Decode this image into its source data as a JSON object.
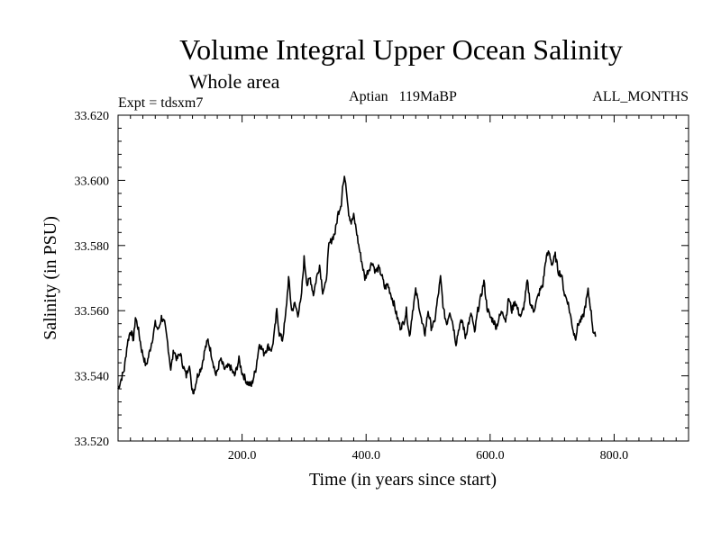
{
  "chart_data": {
    "type": "line",
    "title": "Volume Integral Upper Ocean Salinity",
    "subtitle": "Whole area",
    "left_label": "Expt = tdsxm7",
    "center_label": "Aptian   119MaBP",
    "right_label": "ALL_MONTHS",
    "xlabel": "Time (in years since start)",
    "ylabel": "Salinity (in PSU)",
    "xlim": [
      0,
      920
    ],
    "ylim": [
      33.52,
      33.62
    ],
    "x_ticks": [
      200,
      400,
      600,
      800
    ],
    "x_tick_labels": [
      "200.0",
      "400.0",
      "600.0",
      "800.0"
    ],
    "y_ticks": [
      33.52,
      33.54,
      33.56,
      33.58,
      33.6,
      33.62
    ],
    "y_tick_labels": [
      "33.520",
      "33.540",
      "33.560",
      "33.580",
      "33.600",
      "33.620"
    ],
    "series": [
      {
        "name": "Salinity",
        "keypoints": [
          [
            0,
            33.536
          ],
          [
            10,
            33.542
          ],
          [
            15,
            33.55
          ],
          [
            20,
            33.554
          ],
          [
            25,
            33.551
          ],
          [
            28,
            33.558
          ],
          [
            32,
            33.555
          ],
          [
            38,
            33.548
          ],
          [
            45,
            33.543
          ],
          [
            48,
            33.545
          ],
          [
            55,
            33.551
          ],
          [
            60,
            33.556
          ],
          [
            65,
            33.554
          ],
          [
            70,
            33.558
          ],
          [
            75,
            33.556
          ],
          [
            80,
            33.55
          ],
          [
            85,
            33.542
          ],
          [
            90,
            33.548
          ],
          [
            95,
            33.545
          ],
          [
            100,
            33.547
          ],
          [
            105,
            33.543
          ],
          [
            110,
            33.54
          ],
          [
            115,
            33.544
          ],
          [
            118,
            33.537
          ],
          [
            122,
            33.535
          ],
          [
            128,
            33.54
          ],
          [
            135,
            33.543
          ],
          [
            140,
            33.548
          ],
          [
            145,
            33.551
          ],
          [
            150,
            33.547
          ],
          [
            158,
            33.54
          ],
          [
            165,
            33.545
          ],
          [
            172,
            33.542
          ],
          [
            180,
            33.543
          ],
          [
            188,
            33.54
          ],
          [
            195,
            33.545
          ],
          [
            200,
            33.541
          ],
          [
            208,
            33.538
          ],
          [
            215,
            33.537
          ],
          [
            222,
            33.542
          ],
          [
            228,
            33.55
          ],
          [
            235,
            33.547
          ],
          [
            242,
            33.549
          ],
          [
            248,
            33.548
          ],
          [
            252,
            33.553
          ],
          [
            256,
            33.56
          ],
          [
            260,
            33.553
          ],
          [
            265,
            33.551
          ],
          [
            270,
            33.558
          ],
          [
            275,
            33.57
          ],
          [
            280,
            33.56
          ],
          [
            285,
            33.562
          ],
          [
            290,
            33.559
          ],
          [
            295,
            33.563
          ],
          [
            300,
            33.576
          ],
          [
            305,
            33.568
          ],
          [
            310,
            33.57
          ],
          [
            315,
            33.565
          ],
          [
            320,
            33.57
          ],
          [
            325,
            33.574
          ],
          [
            330,
            33.566
          ],
          [
            335,
            33.568
          ],
          [
            340,
            33.58
          ],
          [
            345,
            33.582
          ],
          [
            350,
            33.584
          ],
          [
            355,
            33.59
          ],
          [
            360,
            33.593
          ],
          [
            362,
            33.598
          ],
          [
            366,
            33.601
          ],
          [
            368,
            33.598
          ],
          [
            372,
            33.59
          ],
          [
            376,
            33.587
          ],
          [
            380,
            33.589
          ],
          [
            384,
            33.585
          ],
          [
            388,
            33.58
          ],
          [
            392,
            33.576
          ],
          [
            398,
            33.57
          ],
          [
            405,
            33.573
          ],
          [
            410,
            33.575
          ],
          [
            415,
            33.572
          ],
          [
            420,
            33.573
          ],
          [
            425,
            33.571
          ],
          [
            430,
            33.567
          ],
          [
            435,
            33.568
          ],
          [
            440,
            33.565
          ],
          [
            445,
            33.562
          ],
          [
            450,
            33.558
          ],
          [
            455,
            33.555
          ],
          [
            460,
            33.556
          ],
          [
            465,
            33.56
          ],
          [
            470,
            33.552
          ],
          [
            475,
            33.56
          ],
          [
            480,
            33.566
          ],
          [
            485,
            33.562
          ],
          [
            490,
            33.556
          ],
          [
            495,
            33.553
          ],
          [
            500,
            33.56
          ],
          [
            505,
            33.555
          ],
          [
            510,
            33.556
          ],
          [
            515,
            33.563
          ],
          [
            520,
            33.57
          ],
          [
            525,
            33.56
          ],
          [
            530,
            33.556
          ],
          [
            535,
            33.56
          ],
          [
            540,
            33.556
          ],
          [
            545,
            33.55
          ],
          [
            550,
            33.555
          ],
          [
            555,
            33.557
          ],
          [
            560,
            33.552
          ],
          [
            565,
            33.556
          ],
          [
            570,
            33.559
          ],
          [
            575,
            33.553
          ],
          [
            580,
            33.56
          ],
          [
            585,
            33.564
          ],
          [
            590,
            33.569
          ],
          [
            595,
            33.561
          ],
          [
            600,
            33.558
          ],
          [
            605,
            33.557
          ],
          [
            610,
            33.555
          ],
          [
            615,
            33.558
          ],
          [
            620,
            33.56
          ],
          [
            625,
            33.557
          ],
          [
            630,
            33.564
          ],
          [
            635,
            33.56
          ],
          [
            640,
            33.563
          ],
          [
            645,
            33.56
          ],
          [
            650,
            33.558
          ],
          [
            655,
            33.562
          ],
          [
            660,
            33.569
          ],
          [
            665,
            33.562
          ],
          [
            670,
            33.56
          ],
          [
            675,
            33.563
          ],
          [
            680,
            33.566
          ],
          [
            685,
            33.568
          ],
          [
            690,
            33.576
          ],
          [
            695,
            33.578
          ],
          [
            700,
            33.574
          ],
          [
            705,
            33.577
          ],
          [
            710,
            33.572
          ],
          [
            715,
            33.571
          ],
          [
            720,
            33.565
          ],
          [
            725,
            33.563
          ],
          [
            730,
            33.558
          ],
          [
            735,
            33.553
          ],
          [
            738,
            33.552
          ],
          [
            742,
            33.556
          ],
          [
            746,
            33.557
          ],
          [
            750,
            33.558
          ],
          [
            754,
            33.562
          ],
          [
            758,
            33.566
          ],
          [
            762,
            33.561
          ],
          [
            766,
            33.554
          ],
          [
            770,
            33.552
          ]
        ]
      }
    ]
  }
}
